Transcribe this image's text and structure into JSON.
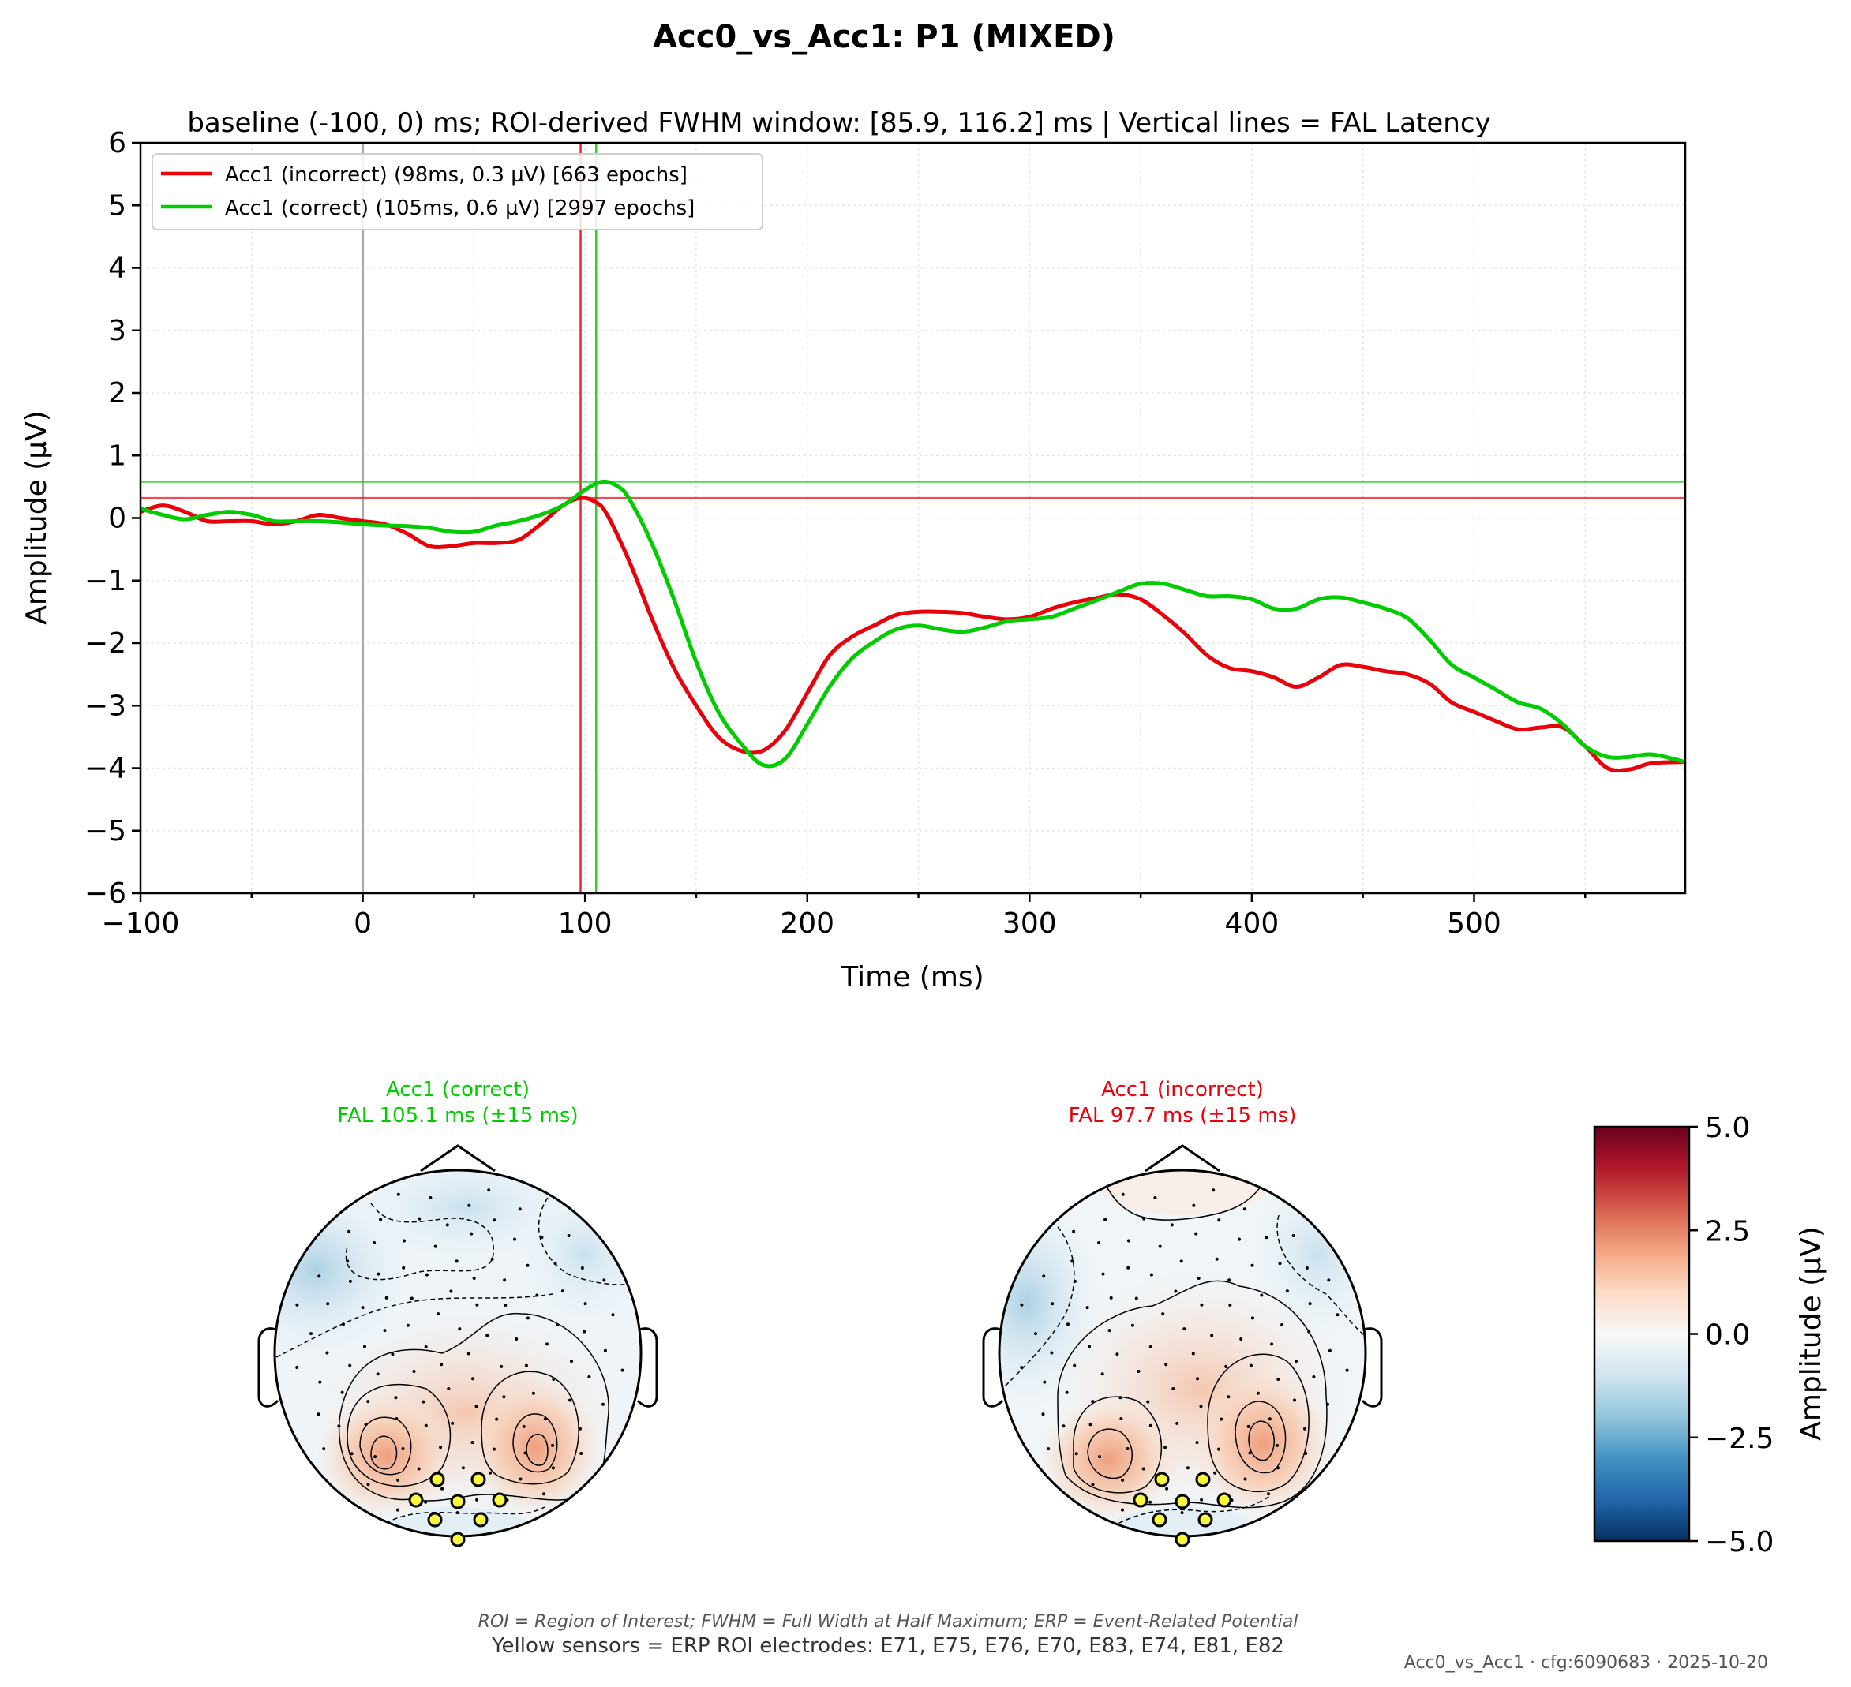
{
  "figure": {
    "title": "Acc0_vs_Acc1: P1 (MIXED)",
    "footnote_line1": "ROI = Region of Interest; FWHM = Full Width at Half Maximum; ERP = Event-Related Potential",
    "footnote_line2": "Yellow sensors = ERP ROI electrodes: E71, E75, E76, E70, E83, E74, E81, E82",
    "stamp": "Acc0_vs_Acc1 · cfg:6090683 · 2025-10-20"
  },
  "chart_data": [
    {
      "type": "line",
      "title": "baseline (-100, 0) ms; ROI-derived FWHM window: [85.9, 116.2] ms | Vertical lines = FAL Latency",
      "xlabel": "Time (ms)",
      "ylabel": "Amplitude (µV)",
      "xlim": [
        -100,
        595
      ],
      "ylim": [
        -6,
        6
      ],
      "xticks": [
        -100,
        0,
        100,
        200,
        300,
        400,
        500
      ],
      "xtick_labels": [
        "−100",
        "0",
        "100",
        "200",
        "300",
        "400",
        "500"
      ],
      "yticks": [
        6,
        5,
        4,
        3,
        2,
        1,
        0,
        -1,
        -2,
        -3,
        -4,
        -5,
        -6
      ],
      "ytick_labels": [
        "6",
        "5",
        "4",
        "3",
        "2",
        "1",
        "0",
        "−1",
        "−2",
        "−3",
        "−4",
        "−5",
        "−6"
      ],
      "grid": true,
      "legend_position": "top-left",
      "stimulus_onset_ms": 0,
      "series": [
        {
          "name": "Acc1 (incorrect) (98ms, 0.3 µV) [663 epochs]",
          "color": "#e8000b",
          "peak_latency_ms": 98,
          "peak_amplitude_uv": 0.3,
          "x": [
            -100,
            -90,
            -80,
            -70,
            -60,
            -50,
            -40,
            -30,
            -20,
            -10,
            0,
            10,
            20,
            30,
            40,
            50,
            60,
            70,
            80,
            90,
            98,
            105,
            110,
            120,
            130,
            140,
            150,
            160,
            170,
            180,
            190,
            200,
            210,
            220,
            230,
            240,
            250,
            260,
            270,
            280,
            290,
            300,
            310,
            320,
            330,
            340,
            350,
            360,
            370,
            380,
            390,
            400,
            410,
            420,
            430,
            440,
            450,
            460,
            470,
            480,
            490,
            500,
            510,
            520,
            530,
            540,
            550,
            560,
            570,
            580,
            595
          ],
          "y": [
            0.1,
            0.2,
            0.1,
            -0.05,
            -0.05,
            -0.05,
            -0.1,
            -0.05,
            0.05,
            0.0,
            -0.05,
            -0.1,
            -0.25,
            -0.45,
            -0.45,
            -0.4,
            -0.4,
            -0.35,
            -0.1,
            0.2,
            0.32,
            0.25,
            0.05,
            -0.7,
            -1.6,
            -2.4,
            -3.0,
            -3.5,
            -3.72,
            -3.72,
            -3.4,
            -2.8,
            -2.2,
            -1.9,
            -1.72,
            -1.55,
            -1.5,
            -1.5,
            -1.52,
            -1.58,
            -1.62,
            -1.58,
            -1.45,
            -1.35,
            -1.28,
            -1.22,
            -1.3,
            -1.55,
            -1.85,
            -2.2,
            -2.4,
            -2.45,
            -2.55,
            -2.7,
            -2.55,
            -2.35,
            -2.38,
            -2.45,
            -2.5,
            -2.65,
            -2.95,
            -3.1,
            -3.25,
            -3.38,
            -3.35,
            -3.35,
            -3.65,
            -4.0,
            -4.02,
            -3.92,
            -3.9
          ]
        },
        {
          "name": "Acc1 (correct) (105ms, 0.6 µV) [2997 epochs]",
          "color": "#00cc00",
          "peak_latency_ms": 105,
          "peak_amplitude_uv": 0.6,
          "x": [
            -100,
            -90,
            -80,
            -70,
            -60,
            -50,
            -40,
            -30,
            -20,
            -10,
            0,
            10,
            20,
            30,
            40,
            50,
            60,
            70,
            80,
            90,
            100,
            108,
            115,
            120,
            130,
            140,
            150,
            160,
            170,
            180,
            190,
            200,
            210,
            220,
            230,
            240,
            250,
            260,
            270,
            280,
            290,
            300,
            310,
            320,
            330,
            340,
            350,
            360,
            370,
            380,
            390,
            400,
            410,
            420,
            430,
            440,
            450,
            460,
            470,
            480,
            490,
            500,
            510,
            520,
            530,
            540,
            550,
            560,
            570,
            580,
            595
          ],
          "y": [
            0.15,
            0.05,
            -0.02,
            0.05,
            0.1,
            0.05,
            -0.05,
            -0.05,
            -0.05,
            -0.07,
            -0.1,
            -0.12,
            -0.13,
            -0.16,
            -0.22,
            -0.22,
            -0.12,
            -0.05,
            0.05,
            0.2,
            0.45,
            0.58,
            0.5,
            0.3,
            -0.4,
            -1.3,
            -2.3,
            -3.1,
            -3.6,
            -3.95,
            -3.85,
            -3.3,
            -2.7,
            -2.25,
            -1.98,
            -1.78,
            -1.72,
            -1.78,
            -1.82,
            -1.75,
            -1.65,
            -1.62,
            -1.58,
            -1.45,
            -1.32,
            -1.18,
            -1.05,
            -1.05,
            -1.15,
            -1.25,
            -1.25,
            -1.3,
            -1.45,
            -1.45,
            -1.3,
            -1.27,
            -1.35,
            -1.45,
            -1.6,
            -1.95,
            -2.35,
            -2.55,
            -2.75,
            -2.95,
            -3.05,
            -3.3,
            -3.65,
            -3.82,
            -3.82,
            -3.78,
            -3.9
          ]
        }
      ],
      "reference_lines": [
        {
          "orientation": "vertical",
          "value": 98,
          "color": "#e8000b"
        },
        {
          "orientation": "vertical",
          "value": 105,
          "color": "#00cc00"
        },
        {
          "orientation": "horizontal",
          "value": 0.32,
          "color": "#e8000b"
        },
        {
          "orientation": "horizontal",
          "value": 0.58,
          "color": "#00cc00"
        }
      ]
    },
    {
      "type": "heatmap",
      "subtype": "scalp topography",
      "panels": [
        {
          "title_line1": "Acc1 (correct)",
          "title_line2": "FAL 105.1 ms (±15 ms)",
          "title_color": "#00cc00",
          "latency_ms": 105.1
        },
        {
          "title_line1": "Acc1 (incorrect)",
          "title_line2": "FAL 97.7 ms (±15 ms)",
          "title_color": "#e8000b",
          "latency_ms": 97.7
        }
      ],
      "roi_electrodes": [
        "E71",
        "E75",
        "E76",
        "E70",
        "E83",
        "E74",
        "E81",
        "E82"
      ],
      "colorbar": {
        "label": "Amplitude (µV)",
        "colormap": "RdBu_r",
        "range": [
          -5.0,
          5.0
        ],
        "ticks": [
          5.0,
          2.5,
          0.0,
          -2.5,
          -5.0
        ],
        "tick_labels": [
          "5.0",
          "2.5",
          "0.0",
          "−2.5",
          "−5.0"
        ]
      }
    }
  ]
}
